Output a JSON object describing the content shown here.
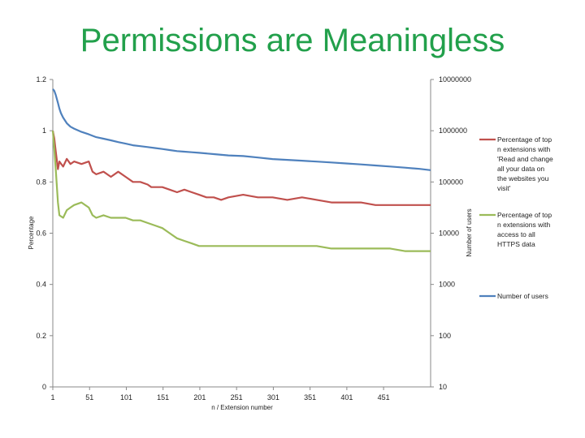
{
  "slide": {
    "title": "Permissions are Meaningless"
  },
  "chart_data": {
    "type": "line",
    "xlabel": "n / Extension number",
    "ylabel": "Percentage",
    "y2label": "Number of users",
    "xlim": [
      1,
      515
    ],
    "ylim": [
      0,
      1.2
    ],
    "y2lim": [
      10,
      10000000
    ],
    "y2scale": "log",
    "x_ticks": [
      "1",
      "51",
      "101",
      "151",
      "201",
      "251",
      "301",
      "351",
      "401",
      "451"
    ],
    "y_ticks": [
      "0",
      "0.2",
      "0.4",
      "0.6",
      "0.8",
      "1",
      "1.2"
    ],
    "y2_ticks": [
      "10",
      "100",
      "1000",
      "10000",
      "100000",
      "1000000",
      "10000000"
    ],
    "legend_position": "right",
    "series": [
      {
        "name": "Percentage of top n extensions with 'Read and change all your data on the websites you visit'",
        "axis": "left",
        "color": "#c0504d",
        "x": [
          1,
          3,
          5,
          8,
          10,
          15,
          20,
          25,
          30,
          40,
          50,
          55,
          60,
          70,
          80,
          90,
          100,
          110,
          120,
          130,
          135,
          140,
          150,
          160,
          170,
          180,
          190,
          200,
          210,
          220,
          230,
          240,
          260,
          280,
          300,
          320,
          340,
          360,
          380,
          400,
          420,
          440,
          460,
          480,
          500,
          515
        ],
        "y": [
          1.0,
          0.97,
          0.92,
          0.85,
          0.88,
          0.86,
          0.89,
          0.87,
          0.88,
          0.87,
          0.88,
          0.84,
          0.83,
          0.84,
          0.82,
          0.84,
          0.82,
          0.8,
          0.8,
          0.79,
          0.78,
          0.78,
          0.78,
          0.77,
          0.76,
          0.77,
          0.76,
          0.75,
          0.74,
          0.74,
          0.73,
          0.74,
          0.75,
          0.74,
          0.74,
          0.73,
          0.74,
          0.73,
          0.72,
          0.72,
          0.72,
          0.71,
          0.71,
          0.71,
          0.71,
          0.71
        ]
      },
      {
        "name": "Percentage of top n extensions with access to all HTTPS data",
        "axis": "left",
        "color": "#9bbb59",
        "x": [
          1,
          3,
          5,
          8,
          10,
          15,
          20,
          25,
          30,
          40,
          50,
          55,
          60,
          70,
          80,
          90,
          100,
          110,
          120,
          130,
          140,
          150,
          160,
          170,
          180,
          190,
          200,
          210,
          220,
          230,
          240,
          260,
          280,
          300,
          320,
          340,
          360,
          380,
          400,
          420,
          440,
          460,
          480,
          500,
          515
        ],
        "y": [
          1.0,
          0.93,
          0.85,
          0.72,
          0.67,
          0.66,
          0.69,
          0.7,
          0.71,
          0.72,
          0.7,
          0.67,
          0.66,
          0.67,
          0.66,
          0.66,
          0.66,
          0.65,
          0.65,
          0.64,
          0.63,
          0.62,
          0.6,
          0.58,
          0.57,
          0.56,
          0.55,
          0.55,
          0.55,
          0.55,
          0.55,
          0.55,
          0.55,
          0.55,
          0.55,
          0.55,
          0.55,
          0.54,
          0.54,
          0.54,
          0.54,
          0.54,
          0.53,
          0.53,
          0.53
        ]
      },
      {
        "name": "Number of users",
        "axis": "right",
        "color": "#4f81bd",
        "x": [
          1,
          3,
          5,
          8,
          10,
          12,
          15,
          20,
          25,
          30,
          40,
          50,
          60,
          70,
          80,
          90,
          100,
          110,
          120,
          130,
          140,
          150,
          160,
          170,
          180,
          190,
          200,
          220,
          240,
          260,
          280,
          300,
          320,
          340,
          360,
          380,
          400,
          420,
          440,
          460,
          480,
          500,
          515
        ],
        "y": [
          6500000,
          6000000,
          5000000,
          3500000,
          2700000,
          2200000,
          1800000,
          1400000,
          1200000,
          1100000,
          950000,
          850000,
          750000,
          700000,
          650000,
          600000,
          560000,
          520000,
          500000,
          480000,
          460000,
          440000,
          420000,
          400000,
          390000,
          380000,
          370000,
          350000,
          330000,
          320000,
          300000,
          280000,
          270000,
          260000,
          250000,
          240000,
          230000,
          220000,
          210000,
          200000,
          190000,
          180000,
          170000
        ]
      }
    ]
  }
}
